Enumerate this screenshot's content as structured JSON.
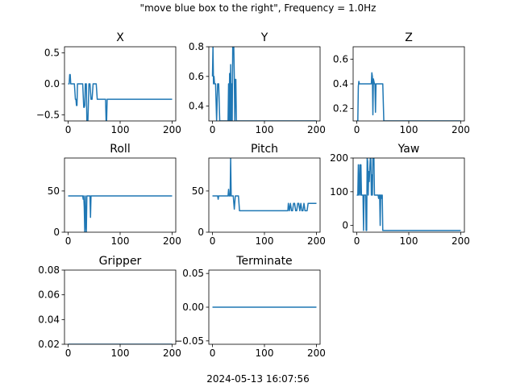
{
  "figure": {
    "suptitle": "\"move blue box to the right\", Frequency = 1.0Hz",
    "footer": "2024-05-13 16:07:56",
    "line_color": "#1f77b4"
  },
  "chart_data": [
    {
      "type": "line",
      "title": "X",
      "xlim": [
        -7,
        207
      ],
      "ylim": [
        -0.6,
        0.6
      ],
      "xticks": [
        0,
        100,
        200
      ],
      "xtick_labels": [
        "0",
        "100",
        "200"
      ],
      "yticks": [
        -0.5,
        0.0,
        0.5
      ],
      "ytick_labels": [
        "−0.5",
        "0.0",
        "0.5"
      ],
      "series": [
        {
          "x": [
            0,
            2,
            3,
            4,
            5,
            12,
            14,
            15,
            16,
            17,
            18,
            20,
            22,
            24,
            28,
            30,
            31,
            32,
            33,
            35,
            36,
            38,
            40,
            42,
            44,
            46,
            48,
            50,
            52,
            54,
            56,
            58,
            60,
            62,
            64,
            66,
            68,
            70,
            72,
            73,
            74,
            75,
            76,
            200
          ],
          "y": [
            0.0,
            0.0,
            0.15,
            0.15,
            0.0,
            0.0,
            -0.25,
            -0.25,
            -0.35,
            -0.35,
            0.0,
            0.0,
            0.0,
            0.0,
            0.0,
            -0.38,
            -0.38,
            -0.35,
            0.0,
            0.0,
            -0.6,
            -0.6,
            0.0,
            0.0,
            -0.25,
            -0.25,
            0.0,
            0.0,
            0.0,
            0.0,
            -0.25,
            -0.25,
            -0.25,
            -0.25,
            -0.25,
            -0.25,
            -0.25,
            -0.25,
            -0.25,
            -0.6,
            -0.6,
            -0.25,
            -0.25,
            -0.25
          ]
        }
      ]
    },
    {
      "type": "line",
      "title": "Y",
      "xlim": [
        -7,
        207
      ],
      "ylim": [
        0.3,
        0.8
      ],
      "xticks": [
        0,
        100,
        200
      ],
      "xtick_labels": [
        "0",
        "100",
        "200"
      ],
      "yticks": [
        0.4,
        0.6,
        0.8
      ],
      "ytick_labels": [
        "0.4",
        "0.6",
        "0.8"
      ],
      "series": [
        {
          "x": [
            0,
            1,
            2,
            3,
            4,
            5,
            6,
            8,
            10,
            11,
            12,
            14,
            16,
            18,
            20,
            22,
            24,
            26,
            28,
            30,
            31,
            32,
            33,
            34,
            35,
            36,
            37,
            38,
            39,
            40,
            41,
            42,
            43,
            44,
            45,
            46,
            47,
            48,
            49,
            50,
            52,
            200
          ],
          "y": [
            0.6,
            0.8,
            0.55,
            0.6,
            0.55,
            0.55,
            0.55,
            0.3,
            0.55,
            0.55,
            0.55,
            0.3,
            0.3,
            0.3,
            0.3,
            0.3,
            0.3,
            0.3,
            0.3,
            0.3,
            0.55,
            0.3,
            0.62,
            0.3,
            0.68,
            0.3,
            0.55,
            0.3,
            0.8,
            0.75,
            0.8,
            0.6,
            0.3,
            0.58,
            0.58,
            0.3,
            0.3,
            0.3,
            0.3,
            0.3,
            0.3,
            0.3
          ]
        }
      ]
    },
    {
      "type": "line",
      "title": "Z",
      "xlim": [
        -7,
        207
      ],
      "ylim": [
        0.1,
        0.7
      ],
      "xticks": [
        0,
        100,
        200
      ],
      "xtick_labels": [
        "0",
        "100",
        "200"
      ],
      "yticks": [
        0.2,
        0.4,
        0.6
      ],
      "ytick_labels": [
        "0.2",
        "0.4",
        "0.6"
      ],
      "series": [
        {
          "x": [
            0,
            2,
            3,
            4,
            5,
            6,
            8,
            10,
            12,
            14,
            16,
            18,
            20,
            22,
            24,
            26,
            28,
            29,
            30,
            31,
            32,
            33,
            34,
            35,
            36,
            37,
            38,
            40,
            42,
            44,
            46,
            48,
            50,
            52,
            54,
            200
          ],
          "y": [
            0.1,
            0.1,
            0.38,
            0.42,
            0.4,
            0.4,
            0.4,
            0.4,
            0.4,
            0.4,
            0.4,
            0.4,
            0.4,
            0.4,
            0.4,
            0.4,
            0.4,
            0.49,
            0.46,
            0.15,
            0.44,
            0.42,
            0.4,
            0.4,
            0.17,
            0.4,
            0.4,
            0.4,
            0.4,
            0.4,
            0.4,
            0.4,
            0.4,
            0.1,
            0.1,
            0.1
          ]
        }
      ]
    },
    {
      "type": "line",
      "title": "Roll",
      "xlim": [
        -7,
        207
      ],
      "ylim": [
        0,
        90
      ],
      "xticks": [
        0,
        100,
        200
      ],
      "xtick_labels": [
        "0",
        "100",
        "200"
      ],
      "yticks": [
        0,
        50
      ],
      "ytick_labels": [
        "0",
        "50"
      ],
      "series": [
        {
          "x": [
            0,
            28,
            29,
            30,
            31,
            32,
            33,
            34,
            35,
            36,
            37,
            42,
            43,
            44,
            200
          ],
          "y": [
            44,
            44,
            40,
            44,
            30,
            0,
            44,
            10,
            0,
            44,
            44,
            44,
            18,
            44,
            44
          ]
        }
      ]
    },
    {
      "type": "line",
      "title": "Pitch",
      "xlim": [
        -7,
        207
      ],
      "ylim": [
        0,
        90
      ],
      "xticks": [
        0,
        100,
        200
      ],
      "xtick_labels": [
        "0",
        "100",
        "200"
      ],
      "yticks": [
        0,
        50
      ],
      "ytick_labels": [
        "0",
        "50"
      ],
      "series": [
        {
          "x": [
            0,
            10,
            11,
            12,
            30,
            31,
            32,
            34,
            35,
            36,
            37,
            38,
            39,
            40,
            42,
            44,
            45,
            46,
            48,
            50,
            52,
            54,
            145,
            146,
            148,
            150,
            152,
            154,
            156,
            158,
            160,
            162,
            164,
            166,
            168,
            170,
            172,
            174,
            176,
            178,
            180,
            182,
            184,
            186,
            188,
            200
          ],
          "y": [
            44,
            44,
            40,
            44,
            44,
            52,
            44,
            44,
            90,
            44,
            44,
            44,
            44,
            44,
            28,
            44,
            44,
            44,
            44,
            44,
            26,
            26,
            26,
            35,
            26,
            35,
            26,
            26,
            35,
            35,
            26,
            26,
            35,
            35,
            26,
            35,
            26,
            26,
            35,
            26,
            26,
            26,
            35,
            35,
            35,
            35
          ]
        }
      ]
    },
    {
      "type": "line",
      "title": "Yaw",
      "xlim": [
        -7,
        207
      ],
      "ylim": [
        -20,
        200
      ],
      "xticks": [
        0,
        100,
        200
      ],
      "xtick_labels": [
        "0",
        "100",
        "200"
      ],
      "yticks": [
        0,
        100,
        200
      ],
      "ytick_labels": [
        "0",
        "100",
        "200"
      ],
      "series": [
        {
          "x": [
            0,
            2,
            3,
            4,
            5,
            6,
            7,
            8,
            9,
            10,
            11,
            12,
            13,
            14,
            15,
            16,
            17,
            18,
            19,
            20,
            21,
            22,
            23,
            24,
            25,
            26,
            27,
            28,
            29,
            30,
            31,
            32,
            33,
            34,
            35,
            36,
            37,
            38,
            39,
            40,
            41,
            42,
            43,
            44,
            45,
            46,
            47,
            48,
            49,
            50,
            52,
            200
          ],
          "y": [
            90,
            90,
            180,
            90,
            100,
            180,
            90,
            180,
            90,
            90,
            90,
            90,
            -15,
            90,
            90,
            90,
            90,
            -15,
            -15,
            200,
            190,
            90,
            160,
            130,
            170,
            200,
            200,
            90,
            150,
            90,
            200,
            180,
            200,
            90,
            90,
            90,
            90,
            90,
            90,
            90,
            90,
            80,
            90,
            90,
            0,
            90,
            90,
            80,
            90,
            -15,
            -15,
            -15
          ]
        }
      ]
    },
    {
      "type": "line",
      "title": "Gripper",
      "xlim": [
        -7,
        207
      ],
      "ylim": [
        0.02,
        0.08
      ],
      "xticks": [
        0,
        100,
        200
      ],
      "xtick_labels": [
        "0",
        "100",
        "200"
      ],
      "yticks": [
        0.02,
        0.04,
        0.06,
        0.08
      ],
      "ytick_labels": [
        "0.02",
        "0.04",
        "0.06",
        "0.08"
      ],
      "series": [
        {
          "x": [
            0,
            200
          ],
          "y": [
            0.02,
            0.02
          ]
        }
      ]
    },
    {
      "type": "line",
      "title": "Terminate",
      "xlim": [
        -7,
        207
      ],
      "ylim": [
        -0.055,
        0.055
      ],
      "xticks": [
        0,
        100,
        200
      ],
      "xtick_labels": [
        "0",
        "100",
        "200"
      ],
      "yticks": [
        -0.05,
        0.0,
        0.05
      ],
      "ytick_labels": [
        "−0.05",
        "0.00",
        "0.05"
      ],
      "series": [
        {
          "x": [
            0,
            200
          ],
          "y": [
            0.0,
            0.0
          ]
        }
      ]
    }
  ]
}
